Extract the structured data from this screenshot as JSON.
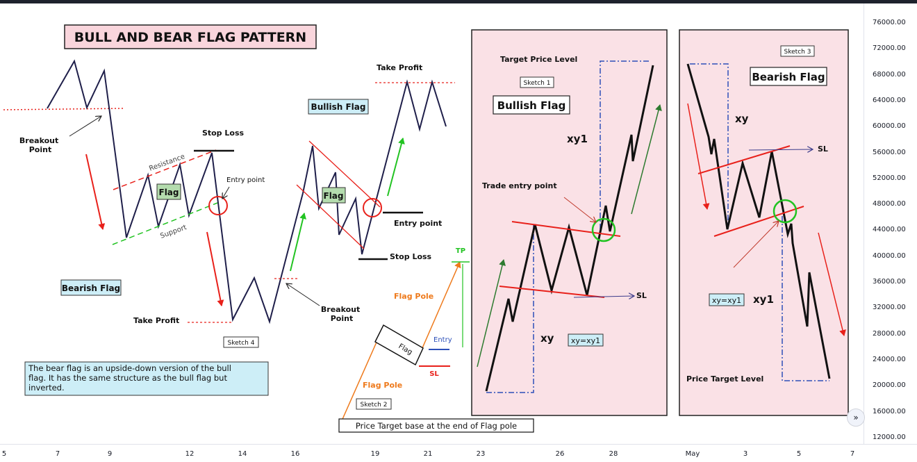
{
  "title": "BULL AND BEAR FLAG PATTERN",
  "labels": {
    "breakout_point": [
      "Breakout",
      "Point"
    ],
    "resistance": "Resistance",
    "support": "Support",
    "flag": "Flag",
    "stop_loss": "Stop Loss",
    "entry_point": "Entry point",
    "take_profit": "Take Profit",
    "bearish_flag": "Bearish Flag",
    "bullish_flag": "Bullish Flag",
    "sketch_1": "Sketch 1",
    "sketch_2": "Sketch 2",
    "sketch_3": "Sketch 3",
    "sketch_4": "Sketch 4",
    "tp": "TP",
    "flag_pole": "Flag Pole",
    "entry": "Entry",
    "sl": "SL",
    "price_target_base": "Price Target base at the end of Flag pole",
    "target_price_level": "Target Price Level",
    "trade_entry_point": "Trade entry point",
    "xy": "xy",
    "xy1": "xy1",
    "xy_eq_xy1": "xy=xy1",
    "price_target_level": "Price Target Level"
  },
  "note": [
    "The bear flag is an upside-down version of the bull",
    "flag. It has the same structure as the bull flag but",
    "inverted."
  ],
  "price_axis": [
    "76000.00",
    "72000.00",
    "68000.00",
    "64000.00",
    "60000.00",
    "56000.00",
    "52000.00",
    "48000.00",
    "44000.00",
    "40000.00",
    "36000.00",
    "32000.00",
    "28000.00",
    "24000.00",
    "20000.00",
    "16000.00",
    "12000.00"
  ],
  "time_axis": [
    "5",
    "7",
    "9",
    "12",
    "14",
    "16",
    "19",
    "21",
    "23",
    "26",
    "28",
    "May",
    "3",
    "5",
    "7"
  ],
  "scroll_icon": "double-chevron-right-icon",
  "colors": {
    "title_bg": "#f9d5dc",
    "sketch_bg": "#fae1e6",
    "bullish_label_bg": "#cdeef7",
    "flag_label_bg": "#b4dcae",
    "red": "#e8201a",
    "green": "#22c322",
    "dark_green": "#2d7a2f",
    "navy": "#1f1f4a",
    "blue_dash": "#2c4fb8",
    "orange": "#ee7a1c"
  }
}
